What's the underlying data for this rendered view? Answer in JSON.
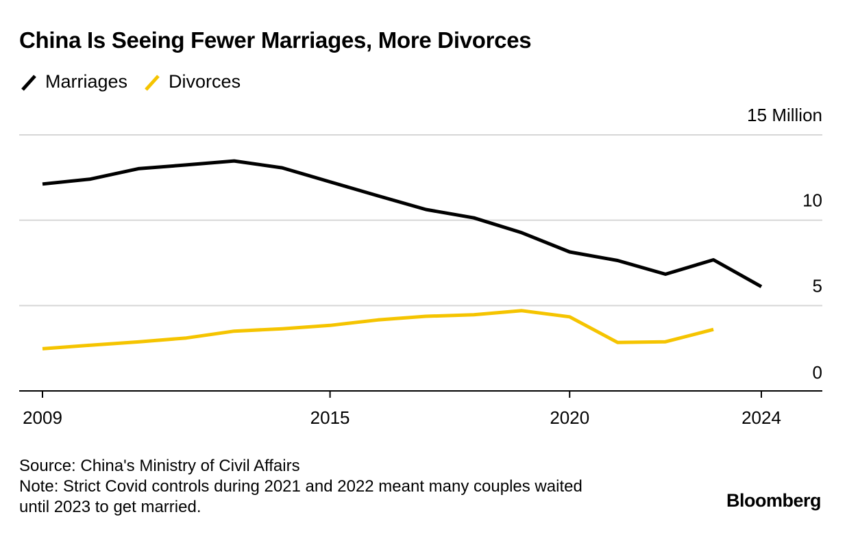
{
  "title": "China Is Seeing Fewer Marriages, More Divorces",
  "legend": [
    {
      "label": "Marriages",
      "color": "#000000"
    },
    {
      "label": "Divorces",
      "color": "#f5c400"
    }
  ],
  "footer": {
    "source": "Source: China's Ministry of Civil Affairs",
    "note_line1": "Note: Strict Covid controls during 2021 and 2022 meant many couples waited",
    "note_line2": "until 2023 to get married."
  },
  "brand": "Bloomberg",
  "chart_data": {
    "type": "line",
    "title": "China Is Seeing Fewer Marriages, More Divorces",
    "unit_label": "Million",
    "xlim": [
      2008.5,
      2025.25
    ],
    "ylim": [
      0,
      15
    ],
    "x_ticks": [
      2009,
      2015,
      2020,
      2024
    ],
    "x_tick_labels": [
      "2009",
      "2015",
      "2020",
      "2024"
    ],
    "y_ticks": [
      0,
      5,
      10,
      15
    ],
    "y_tick_labels": [
      "0",
      "5",
      "10",
      "15 Million"
    ],
    "grid": true,
    "legend_position": "top-left",
    "series": [
      {
        "name": "Marriages",
        "color": "#000000",
        "x": [
          2009,
          2010,
          2011,
          2012,
          2013,
          2014,
          2015,
          2016,
          2017,
          2018,
          2019,
          2020,
          2021,
          2022,
          2023,
          2024
        ],
        "y": [
          12.12,
          12.41,
          13.02,
          13.24,
          13.47,
          13.07,
          12.25,
          11.43,
          10.63,
          10.14,
          9.27,
          8.14,
          7.64,
          6.84,
          7.68,
          6.11
        ]
      },
      {
        "name": "Divorces",
        "color": "#f5c400",
        "x": [
          2009,
          2010,
          2011,
          2012,
          2013,
          2014,
          2015,
          2016,
          2017,
          2018,
          2019,
          2020,
          2021,
          2022,
          2023
        ],
        "y": [
          2.47,
          2.68,
          2.87,
          3.1,
          3.5,
          3.64,
          3.84,
          4.16,
          4.37,
          4.46,
          4.7,
          4.34,
          2.84,
          2.88,
          3.6
        ]
      }
    ]
  }
}
